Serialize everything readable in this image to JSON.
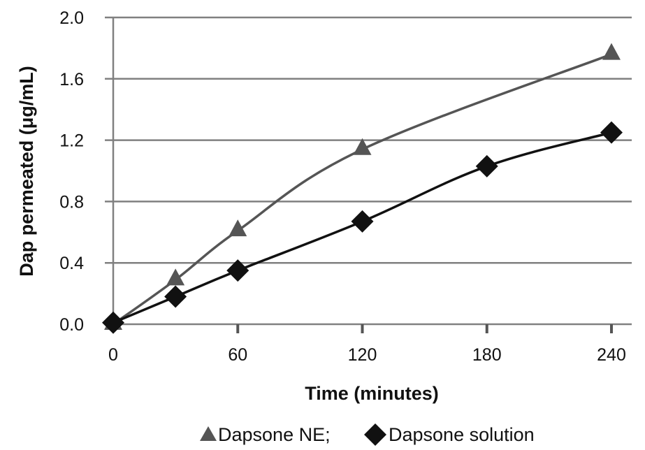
{
  "chart_data": {
    "type": "line",
    "title": "",
    "xlabel": "Time (minutes)",
    "ylabel": "Dap permeated (μg/mL)",
    "xlim": [
      0,
      240
    ],
    "ylim": [
      0.0,
      2.0
    ],
    "x_ticks": [
      0,
      60,
      120,
      180,
      240
    ],
    "x_tick_labels": [
      "0",
      "60",
      "120",
      "180",
      "240"
    ],
    "y_ticks": [
      0.0,
      0.4,
      0.8,
      1.2,
      1.6,
      2.0
    ],
    "y_tick_labels": [
      "0.0",
      "0.4",
      "0.8",
      "1.2",
      "1.6",
      "2.0"
    ],
    "grid": {
      "horizontal": true,
      "vertical": false
    },
    "legend_position": "bottom",
    "series": [
      {
        "name": "Dapsone NE",
        "marker": "triangle",
        "color": "#555555",
        "smooth": true,
        "x": [
          0,
          30,
          60,
          120,
          240
        ],
        "values": [
          0.0,
          0.29,
          0.61,
          1.14,
          1.76
        ]
      },
      {
        "name": "Dapsone solution",
        "marker": "diamond",
        "color": "#111111",
        "smooth": true,
        "x": [
          0,
          30,
          60,
          120,
          180,
          240
        ],
        "values": [
          0.01,
          0.18,
          0.35,
          0.67,
          1.03,
          1.25
        ]
      }
    ]
  },
  "legend": {
    "items": [
      {
        "label": "Dapsone NE;",
        "marker": "triangle-icon",
        "color": "#555555"
      },
      {
        "label": "Dapsone solution",
        "marker": "diamond-icon",
        "color": "#111111"
      }
    ]
  },
  "colors": {
    "grid": "#808080",
    "axis": "#808080",
    "tick": "#555555",
    "text": "#111111"
  }
}
